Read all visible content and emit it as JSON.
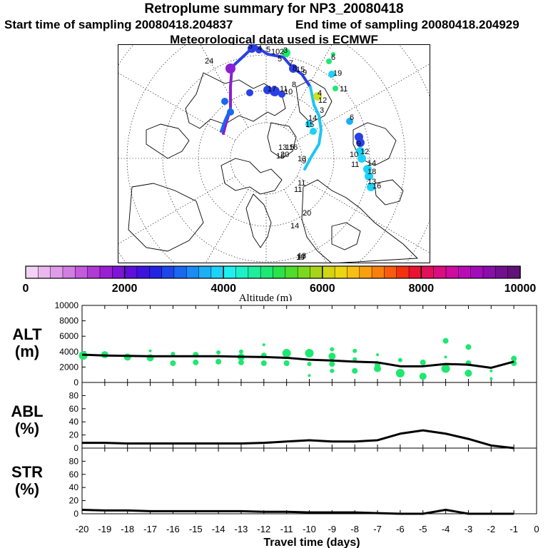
{
  "header": {
    "title": "Retroplume summary for NP3_20080418",
    "start_label": "Start time of sampling 20080418.204837",
    "end_label": "End time of sampling 20080418.204929",
    "met_label": "Meteorological data used is ECMWF"
  },
  "colorbar": {
    "label": "Altitude (m)",
    "ticks": [
      "0",
      "2000",
      "4000",
      "6000",
      "8000",
      "10000"
    ],
    "range": [
      0,
      10000
    ],
    "colors": [
      "#f3d3f3",
      "#eab8ee",
      "#df9ce8",
      "#d27de2",
      "#c35bdc",
      "#b03ad6",
      "#9a1fd3",
      "#7d14d6",
      "#5e10da",
      "#3f13df",
      "#2323e4",
      "#1c45ea",
      "#1968ef",
      "#1a8cf3",
      "#1bb0f6",
      "#1dd2f8",
      "#1ef0f0",
      "#1df2c6",
      "#1ded9c",
      "#1ee874",
      "#2be24a",
      "#4fdd2c",
      "#7bd81f",
      "#a7d41a",
      "#d0d515",
      "#eed512",
      "#f8bf10",
      "#f9a00e",
      "#f97f0d",
      "#f85b0d",
      "#f4300f",
      "#ec1232",
      "#e40f5b",
      "#da0e80",
      "#cc0d9f",
      "#b90cb7",
      "#a20cba",
      "#8a0ea8",
      "#731090",
      "#5f1278"
    ]
  },
  "panels": {
    "alt_label": "ALT\n(m)",
    "abl_label": "ABL\n(%)",
    "str_label": "STR\n(%)",
    "xlabel": "Travel time (days)",
    "colors": {
      "curve": "#000000",
      "marker": "#1ee870"
    }
  },
  "chart_data": [
    {
      "name": "altitude",
      "type": "line",
      "ylim": [
        0,
        10000
      ],
      "yticks": [
        0,
        2000,
        4000,
        6000,
        8000,
        10000
      ],
      "x": [
        -20,
        -19,
        -18,
        -17,
        -16,
        -15,
        -14,
        -13,
        -12,
        -11,
        -10,
        -9,
        -8,
        -7,
        -6,
        -5,
        -4,
        -3,
        -2,
        -1
      ],
      "values": [
        3600,
        3500,
        3450,
        3400,
        3400,
        3400,
        3400,
        3350,
        3300,
        3200,
        2950,
        2850,
        2700,
        2600,
        2100,
        2100,
        2400,
        2300,
        1900,
        2700
      ],
      "clusters": [
        {
          "x": -19.95,
          "y": 3500,
          "r": 6
        },
        {
          "x": -19.0,
          "y": 3600,
          "r": 5
        },
        {
          "x": -18.0,
          "y": 3300,
          "r": 5
        },
        {
          "x": -17.0,
          "y": 3200,
          "r": 5
        },
        {
          "x": -17.0,
          "y": 4100,
          "r": 2
        },
        {
          "x": -16.0,
          "y": 3700,
          "r": 3
        },
        {
          "x": -16.0,
          "y": 2500,
          "r": 4
        },
        {
          "x": -15.0,
          "y": 3600,
          "r": 4
        },
        {
          "x": -15.0,
          "y": 2600,
          "r": 4
        },
        {
          "x": -14.0,
          "y": 3900,
          "r": 3
        },
        {
          "x": -14.0,
          "y": 2700,
          "r": 4
        },
        {
          "x": -13.0,
          "y": 4000,
          "r": 3
        },
        {
          "x": -13.0,
          "y": 3300,
          "r": 5
        },
        {
          "x": -13.0,
          "y": 2600,
          "r": 4
        },
        {
          "x": -12.0,
          "y": 4900,
          "r": 2
        },
        {
          "x": -12.0,
          "y": 3500,
          "r": 4
        },
        {
          "x": -12.0,
          "y": 2500,
          "r": 4
        },
        {
          "x": -11.0,
          "y": 3800,
          "r": 6
        },
        {
          "x": -11.0,
          "y": 2500,
          "r": 4
        },
        {
          "x": -10.0,
          "y": 3800,
          "r": 6
        },
        {
          "x": -10.0,
          "y": 2400,
          "r": 3
        },
        {
          "x": -10.0,
          "y": 900,
          "r": 2
        },
        {
          "x": -9.0,
          "y": 4300,
          "r": 3
        },
        {
          "x": -9.0,
          "y": 3400,
          "r": 5
        },
        {
          "x": -9.0,
          "y": 2400,
          "r": 4
        },
        {
          "x": -9.0,
          "y": 1500,
          "r": 3
        },
        {
          "x": -8.0,
          "y": 4100,
          "r": 3
        },
        {
          "x": -8.0,
          "y": 3000,
          "r": 3
        },
        {
          "x": -8.0,
          "y": 1500,
          "r": 4
        },
        {
          "x": -7.0,
          "y": 3600,
          "r": 2
        },
        {
          "x": -7.0,
          "y": 2300,
          "r": 4
        },
        {
          "x": -7.0,
          "y": 1800,
          "r": 5
        },
        {
          "x": -6.0,
          "y": 2900,
          "r": 3
        },
        {
          "x": -6.0,
          "y": 1200,
          "r": 6
        },
        {
          "x": -5.0,
          "y": 2600,
          "r": 4
        },
        {
          "x": -5.0,
          "y": 800,
          "r": 5
        },
        {
          "x": -4.0,
          "y": 5400,
          "r": 4
        },
        {
          "x": -4.0,
          "y": 3300,
          "r": 2
        },
        {
          "x": -4.0,
          "y": 1800,
          "r": 6
        },
        {
          "x": -3.0,
          "y": 4600,
          "r": 4
        },
        {
          "x": -3.0,
          "y": 2500,
          "r": 4
        },
        {
          "x": -3.0,
          "y": 1200,
          "r": 5
        },
        {
          "x": -2.0,
          "y": 1500,
          "r": 2
        },
        {
          "x": -2.0,
          "y": 500,
          "r": 2
        },
        {
          "x": -1.0,
          "y": 3100,
          "r": 4
        },
        {
          "x": -1.0,
          "y": 2500,
          "r": 4
        }
      ]
    },
    {
      "name": "abl",
      "type": "line",
      "ylim": [
        0,
        100
      ],
      "yticks": [
        0,
        20,
        40,
        60,
        80
      ],
      "x": [
        -20,
        -19,
        -18,
        -17,
        -16,
        -15,
        -14,
        -13,
        -12,
        -11,
        -10,
        -9,
        -8,
        -7,
        -6,
        -5,
        -4,
        -3,
        -2,
        -1
      ],
      "values": [
        8,
        8,
        7,
        7,
        7,
        7,
        7,
        7,
        8,
        10,
        12,
        10,
        10,
        12,
        22,
        27,
        22,
        14,
        4,
        0
      ]
    },
    {
      "name": "str",
      "type": "line",
      "ylim": [
        0,
        100
      ],
      "yticks": [
        0,
        20,
        40,
        60,
        80
      ],
      "xlim": [
        -20,
        0
      ],
      "xticks": [
        -20,
        -19,
        -18,
        -17,
        -16,
        -15,
        -14,
        -13,
        -12,
        -11,
        -10,
        -9,
        -8,
        -7,
        -6,
        -5,
        -4,
        -3,
        -2,
        -1,
        0
      ],
      "x": [
        -20,
        -19,
        -18,
        -17,
        -16,
        -15,
        -14,
        -13,
        -12,
        -11,
        -10,
        -9,
        -8,
        -7,
        -6,
        -5,
        -4,
        -3,
        -2,
        -1
      ],
      "values": [
        6,
        5,
        5,
        4,
        4,
        4,
        4,
        4,
        3,
        3,
        2,
        2,
        2,
        1,
        0,
        0,
        6,
        0,
        0,
        0
      ]
    }
  ],
  "map": {
    "labels": [
      {
        "t": "24",
        "c": "#8a1fd3"
      },
      {
        "t": "3",
        "c": "#2a55ee"
      },
      {
        "t": "4",
        "c": "#2a55ee"
      },
      {
        "t": "5",
        "c": "#2a55ee"
      },
      {
        "t": "10",
        "c": "#2a55ee"
      },
      {
        "t": "2",
        "c": "#2a55ee"
      },
      {
        "t": "3",
        "c": "#1ee870"
      },
      {
        "t": "5",
        "c": "#1bd2f8"
      },
      {
        "t": "7",
        "c": "#1bd2f8"
      },
      {
        "t": "8",
        "c": "#1bd2f8"
      },
      {
        "t": "6",
        "c": "#1bd2f8"
      },
      {
        "t": "15",
        "c": "#1bd2f8"
      },
      {
        "t": "9",
        "c": "#1bd2f8"
      },
      {
        "t": "19",
        "c": "#1bd2f8"
      },
      {
        "t": "17",
        "c": "#2a55ee"
      },
      {
        "t": "11",
        "c": "#2a55ee"
      },
      {
        "t": "10",
        "c": "#2a55ee"
      },
      {
        "t": "8",
        "c": "#2a55ee"
      },
      {
        "t": "4",
        "c": "#cfe020"
      },
      {
        "t": "12",
        "c": "#1bd2f8"
      },
      {
        "t": "11",
        "c": "#1bd2f8"
      },
      {
        "t": "3",
        "c": "#1bd2f8"
      },
      {
        "t": "14",
        "c": "#1bd2f8"
      },
      {
        "t": "15",
        "c": "#1bd2f8"
      },
      {
        "t": "6",
        "c": "#1bd2f8"
      },
      {
        "t": "9",
        "c": "#1bd2f8"
      },
      {
        "t": "12",
        "c": "#1bd2f8"
      },
      {
        "t": "10",
        "c": "#1bd2f8"
      },
      {
        "t": "11",
        "c": "#1bd2f8"
      },
      {
        "t": "14",
        "c": "#1bd2f8"
      },
      {
        "t": "18",
        "c": "#1bd2f8"
      },
      {
        "t": "13",
        "c": "#1bd2f8"
      },
      {
        "t": "16",
        "c": "#1bd2f8"
      },
      {
        "t": "13",
        "c": "#1bd2f8"
      },
      {
        "t": "20",
        "c": "#1bd2f8"
      },
      {
        "t": "15",
        "c": "#1bd2f8"
      },
      {
        "t": "11",
        "c": "#1ee870"
      },
      {
        "t": "16",
        "c": "#1bd2f8"
      },
      {
        "t": "13",
        "c": "#1bd2f8"
      },
      {
        "t": "20",
        "c": "#1ee870"
      },
      {
        "t": "19",
        "c": "#1ee870"
      },
      {
        "t": "17",
        "c": "#1ee870"
      },
      {
        "t": "18",
        "c": "#1ee870"
      },
      {
        "t": "14",
        "c": "#1bd2f8"
      },
      {
        "t": "16",
        "c": "#1bd2f8"
      },
      {
        "t": "11",
        "c": "#1ee870"
      },
      {
        "t": "9",
        "c": "#1bd2f8"
      }
    ]
  }
}
